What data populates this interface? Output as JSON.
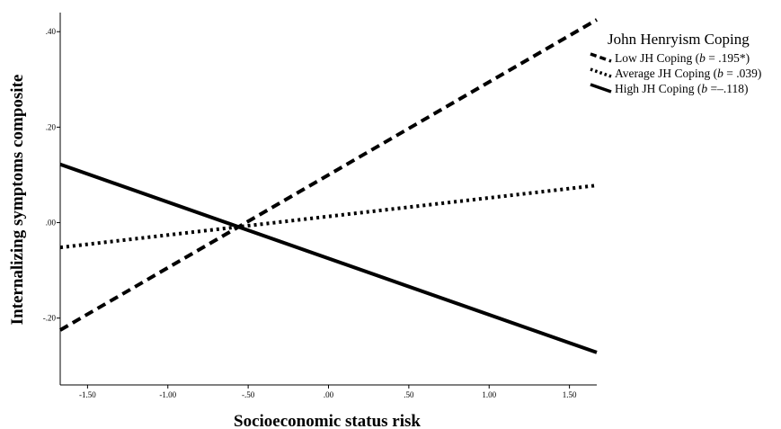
{
  "chart_data": {
    "type": "line",
    "xlabel": "Socioeconomic status risk",
    "ylabel": "Internalizing symptoms composite",
    "xlim": [
      -1.67,
      1.67
    ],
    "ylim": [
      -0.34,
      0.44
    ],
    "x_ticks": [
      -1.5,
      -1.0,
      -0.5,
      0.0,
      0.5,
      1.0,
      1.5
    ],
    "x_tick_labels": [
      "-1.50",
      "-1.00",
      "-.50",
      ".00",
      ".50",
      "1.00",
      "1.50"
    ],
    "y_ticks": [
      -0.2,
      0.0,
      0.2,
      0.4
    ],
    "y_tick_labels": [
      "-.20",
      ".00",
      ".20",
      ".40"
    ],
    "grid": false,
    "legend": {
      "title": "John Henryism Coping",
      "placement": "top-right"
    },
    "series": [
      {
        "name": "Low JH Coping (b = .195*)",
        "label_prefix": "Low JH Coping (",
        "label_b": "b",
        "label_suffix": " = .195*)",
        "style": "dashed",
        "x": [
          -1.67,
          1.67
        ],
        "y": [
          -0.225,
          0.425
        ]
      },
      {
        "name": "Average JH Coping (b = .039)",
        "label_prefix": "Average JH Coping (",
        "label_b": "b",
        "label_suffix": " = .039)",
        "style": "dotted",
        "x": [
          -1.67,
          1.67
        ],
        "y": [
          -0.052,
          0.078
        ]
      },
      {
        "name": "High JH Coping (b =–.118)",
        "label_prefix": "High JH Coping (",
        "label_b": "b",
        "label_suffix": " =–.118)",
        "style": "solid",
        "x": [
          -1.67,
          1.67
        ],
        "y": [
          0.122,
          -0.272
        ]
      }
    ],
    "colors": {
      "lines": "#000000",
      "axes": "#000000",
      "background": "#ffffff"
    }
  }
}
